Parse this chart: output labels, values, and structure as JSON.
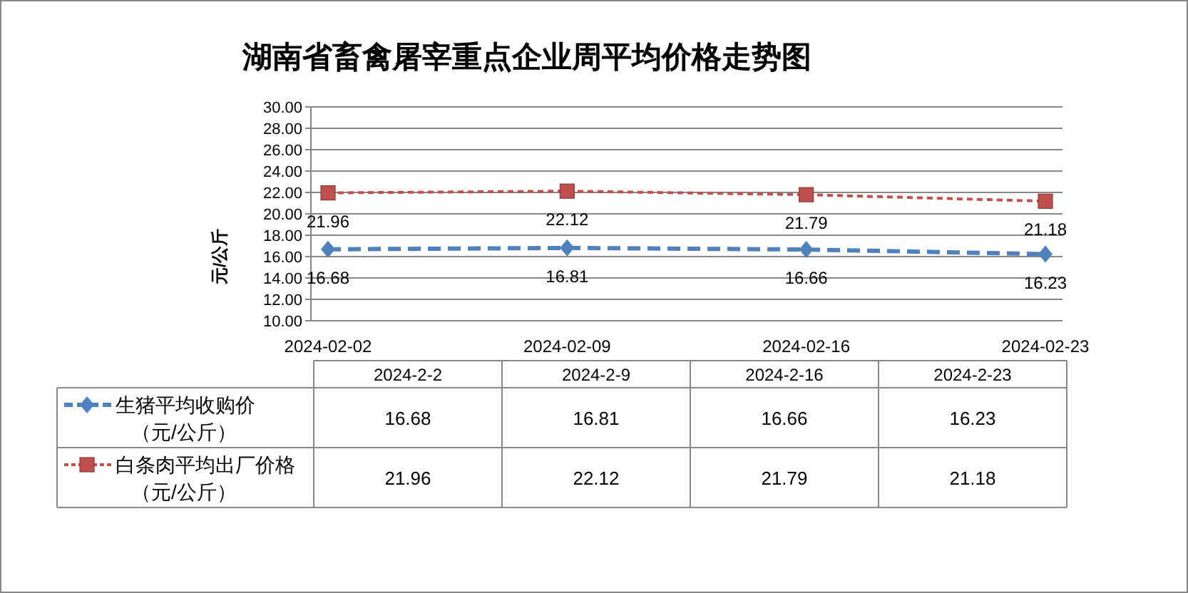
{
  "chart_data": {
    "type": "line",
    "title": "湖南省畜禽屠宰重点企业周平均价格走势图",
    "ylabel": "元/公斤",
    "categories": [
      "2024-02-02",
      "2024-02-09",
      "2024-02-16",
      "2024-02-23"
    ],
    "series": [
      {
        "name": "生猪平均收购价（元/公斤）",
        "color": "#4f81bd",
        "values": [
          16.68,
          16.81,
          16.66,
          16.23
        ],
        "value_labels": [
          "16.68",
          "16.81",
          "16.66",
          "16.23"
        ],
        "marker": "diamond",
        "line_style": "dashed"
      },
      {
        "name": "白条肉平均出厂价格（元/公斤）",
        "color": "#c0504d",
        "values": [
          21.96,
          22.12,
          21.79,
          21.18
        ],
        "value_labels": [
          "21.96",
          "22.12",
          "21.79",
          "21.18"
        ],
        "marker": "square",
        "line_style": "dotted"
      }
    ],
    "ylim": [
      10,
      30
    ],
    "yticks": [
      {
        "value": 10,
        "label": "10.00"
      },
      {
        "value": 12,
        "label": "12.00"
      },
      {
        "value": 14,
        "label": "14.00"
      },
      {
        "value": 16,
        "label": "16.00"
      },
      {
        "value": 18,
        "label": "18.00"
      },
      {
        "value": 20,
        "label": "20.00"
      },
      {
        "value": 22,
        "label": "22.00"
      },
      {
        "value": 24,
        "label": "24.00"
      },
      {
        "value": 26,
        "label": "26.00"
      },
      {
        "value": 28,
        "label": "28.00"
      },
      {
        "value": 30,
        "label": "30.00"
      }
    ],
    "grid": "y",
    "legend": "bottom",
    "annotations": [
      "2024-2-2",
      "2024-2-9",
      "2024-2-16",
      "2024-2-23",
      "16.68",
      "16.81",
      "16.66",
      "16.23",
      "21.96",
      "22.12",
      "21.79",
      "21.18"
    ]
  }
}
